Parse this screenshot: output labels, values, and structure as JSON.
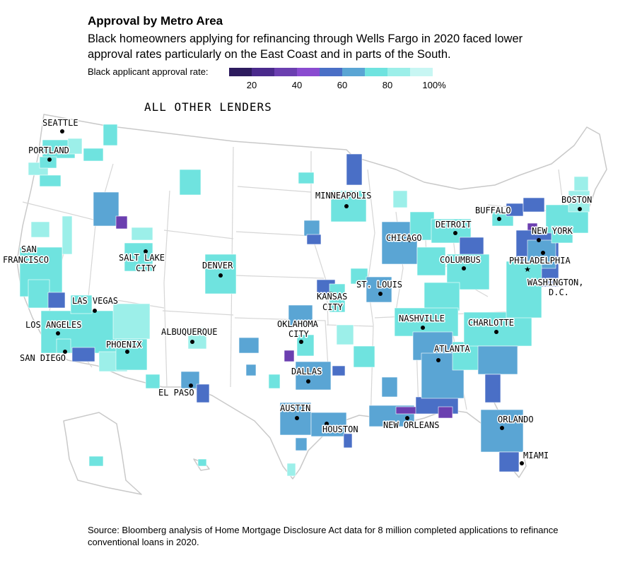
{
  "title": "Approval by Metro Area",
  "subtitle": "Black homeowners applying for refinancing through Wells Fargo in 2020 faced lower approval rates particularly on the East Coast and in parts of the South.",
  "legend": {
    "label": "Black applicant approval rate:",
    "ticks": [
      "20",
      "40",
      "60",
      "80",
      "100%"
    ],
    "colors": [
      "#2d1b5e",
      "#4a2a8c",
      "#6b3fb0",
      "#8a4bd0",
      "#4a6fc6",
      "#5aa5d4",
      "#6fe3df",
      "#9cefe9",
      "#c8f6f3"
    ]
  },
  "map_heading": "ALL OTHER LENDERS",
  "cities": [
    {
      "name": "SEATTLE"
    },
    {
      "name": "PORTLAND"
    },
    {
      "name": "SAN"
    },
    {
      "name": "FRANCISCO"
    },
    {
      "name": "SALT LAKE"
    },
    {
      "name": "CITY"
    },
    {
      "name": "LAS VEGAS"
    },
    {
      "name": "LOS ANGELES"
    },
    {
      "name": "SAN DIEGO"
    },
    {
      "name": "PHOENIX"
    },
    {
      "name": "ALBUQUERQUE"
    },
    {
      "name": "EL PASO"
    },
    {
      "name": "DENVER"
    },
    {
      "name": "MINNEAPOLIS"
    },
    {
      "name": "KANSAS"
    },
    {
      "name": "CITY"
    },
    {
      "name": "OKLAHOMA"
    },
    {
      "name": "CITY"
    },
    {
      "name": "DALLAS"
    },
    {
      "name": "AUSTIN"
    },
    {
      "name": "HOUSTON"
    },
    {
      "name": "ST. LOUIS"
    },
    {
      "name": "CHICAGO"
    },
    {
      "name": "DETROIT"
    },
    {
      "name": "NASHVILLE"
    },
    {
      "name": "NEW ORLEANS"
    },
    {
      "name": "ATLANTA"
    },
    {
      "name": "COLUMBUS"
    },
    {
      "name": "CHARLOTTE"
    },
    {
      "name": "ORLANDO"
    },
    {
      "name": "MIAMI"
    },
    {
      "name": "BUFFALO"
    },
    {
      "name": "BOSTON"
    },
    {
      "name": "NEW YORK"
    },
    {
      "name": "PHILADELPHIA"
    },
    {
      "name": "WASHINGTON,"
    },
    {
      "name": "D.C."
    }
  ],
  "source": "Source: Bloomberg analysis of Home Mortgage Disclosure Act data for 8 million completed applications to refinance conventional loans in 2020."
}
